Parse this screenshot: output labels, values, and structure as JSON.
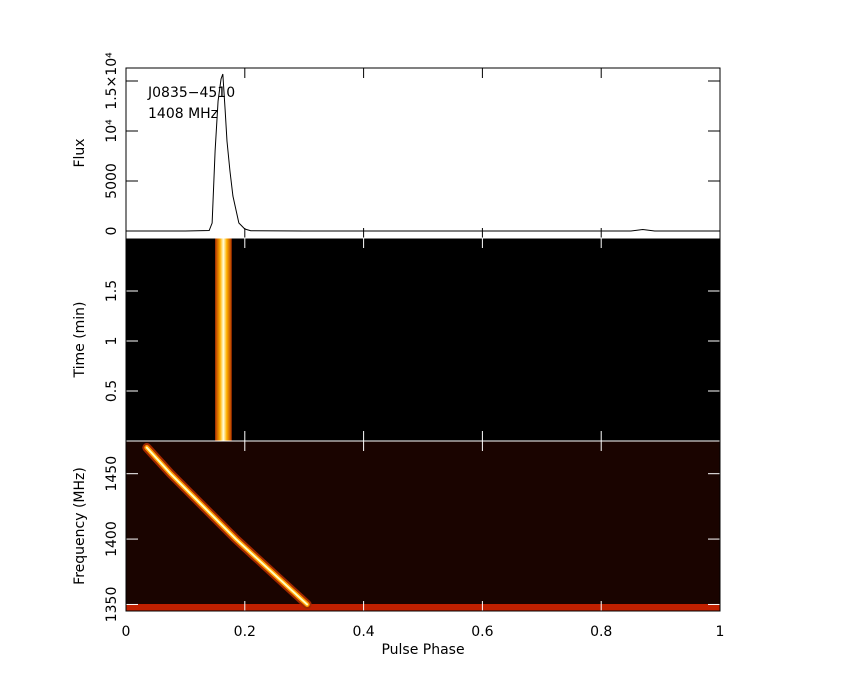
{
  "chart_data": [
    {
      "type": "line",
      "ylabel": "Flux",
      "annotations": [
        "J0835−4510",
        "1408 MHz"
      ],
      "x": [
        0,
        0.1,
        0.14,
        0.145,
        0.15,
        0.155,
        0.16,
        0.163,
        0.167,
        0.17,
        0.175,
        0.18,
        0.19,
        0.2,
        0.21,
        0.3,
        0.5,
        0.85,
        0.87,
        0.89,
        1
      ],
      "values": [
        0,
        0,
        50,
        800,
        8000,
        13000,
        15200,
        15700,
        12000,
        9000,
        6000,
        3500,
        800,
        200,
        30,
        0,
        0,
        0,
        150,
        0,
        0
      ],
      "color": "#000000",
      "ylim": [
        -700,
        16300
      ],
      "yticks": [
        0,
        5000,
        {
          "value": 10000,
          "label": "10⁴"
        },
        {
          "value": 15000,
          "label": "1.5×10⁴"
        }
      ]
    },
    {
      "type": "heatmap",
      "ylabel": "Time (min)",
      "pulse_phase": [
        0.15,
        0.178
      ],
      "ylim": [
        0,
        2.03
      ],
      "yticks": [
        0.5,
        1,
        1.5
      ]
    },
    {
      "type": "heatmap",
      "ylabel": "Frequency (MHz)",
      "xlabel": "Pulse Phase",
      "x": [
        0.035,
        0.075,
        0.13,
        0.185,
        0.245,
        0.305
      ],
      "y": [
        1470,
        1450,
        1425,
        1400,
        1375,
        1350
      ],
      "ylim": [
        1345,
        1475
      ],
      "yticks": [
        1350,
        1400,
        1450
      ],
      "xlim": [
        0,
        1
      ],
      "xticks": [
        0,
        0.2,
        0.4,
        0.6,
        0.8,
        1
      ]
    }
  ]
}
